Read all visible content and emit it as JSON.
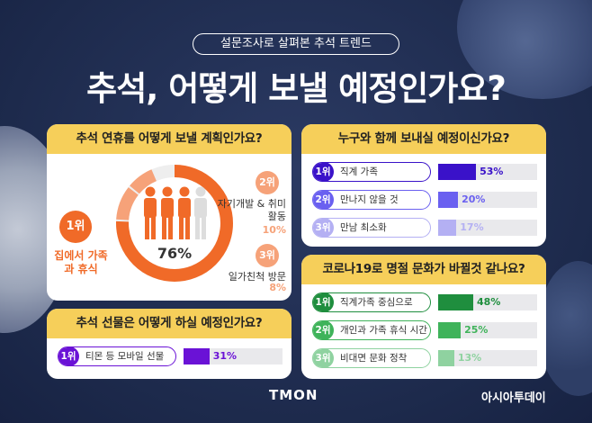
{
  "header": {
    "pill": "설문조사로 살펴본 추석 트렌드",
    "title": "추석, 어떻게 보낼 예정인가요?"
  },
  "colors": {
    "background": "#1f2c4f",
    "card_header": "#f6cf5a",
    "orange": "#f06a28",
    "orange_light": "#f6a279",
    "purple": "#6a12d6",
    "indigo": "#3a12c9",
    "green": "#1f8e3e"
  },
  "icons": {
    "people": "people-icon"
  },
  "chart_data": [
    {
      "type": "pie",
      "title": "추석 연휴를 어떻게 보낼 계획인가요?",
      "center_label": "76%",
      "slices": [
        {
          "rank": "1위",
          "label": "집에서 가족과 휴식",
          "value": 76,
          "value_label": "76%"
        },
        {
          "rank": "2위",
          "label": "자기개발 & 취미활동",
          "value": 10,
          "value_label": "10%"
        },
        {
          "rank": "3위",
          "label": "일가친척 방문",
          "value": 8,
          "value_label": "8%"
        }
      ]
    },
    {
      "type": "bar",
      "title": "추석 선물은 어떻게 하실 예정인가요?",
      "categories": [
        "티몬 등 모바일 선물"
      ],
      "ranks": [
        "1위"
      ],
      "values": [
        31
      ],
      "value_labels": [
        "31%"
      ],
      "ylim": [
        0,
        100
      ]
    },
    {
      "type": "bar",
      "title": "누구와 함께 보내실 예정이신가요?",
      "categories": [
        "직계 가족",
        "만나지 않을 것",
        "만남 최소화"
      ],
      "ranks": [
        "1위",
        "2위",
        "3위"
      ],
      "values": [
        53,
        20,
        17
      ],
      "value_labels": [
        "53%",
        "20%",
        "17%"
      ],
      "ylim": [
        0,
        100
      ]
    },
    {
      "type": "bar",
      "title": "코로나19로 명절 문화가 바뀔것 같나요?",
      "categories": [
        "직계가족 중심으로",
        "개인과 가족 휴식 시간",
        "비대면 문화 정착"
      ],
      "ranks": [
        "1위",
        "2위",
        "3위"
      ],
      "values": [
        48,
        25,
        13
      ],
      "value_labels": [
        "48%",
        "25%",
        "13%"
      ],
      "ylim": [
        0,
        100
      ]
    }
  ],
  "footer": {
    "brand": "TMON",
    "publisher": "아시아투데이"
  }
}
